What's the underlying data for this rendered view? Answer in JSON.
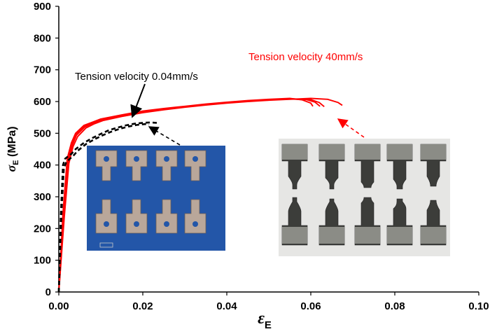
{
  "chart_data": {
    "type": "line",
    "title": "",
    "xlabel": "εE",
    "xlabel_symbol": "ε",
    "xlabel_sub": "E",
    "ylabel": "σE (MPa)",
    "ylabel_symbol": "σ",
    "ylabel_sub": "E",
    "ylabel_unit": " (MPa)",
    "xlim": [
      0,
      0.1
    ],
    "ylim": [
      0,
      900
    ],
    "x_ticks": [
      0,
      0.02,
      0.04,
      0.06,
      0.08,
      0.1
    ],
    "x_tick_labels": [
      "0.00",
      "0.02",
      "0.04",
      "0.06",
      "0.08",
      "0.10"
    ],
    "y_ticks": [
      0,
      100,
      200,
      300,
      400,
      500,
      600,
      700,
      800,
      900
    ],
    "y_tick_labels": [
      "0",
      "100",
      "200",
      "300",
      "400",
      "500",
      "600",
      "700",
      "800",
      "900"
    ],
    "grid": false,
    "series": [
      {
        "name": "Tension velocity 40mm/s",
        "color": "#ff0000",
        "style": "solid",
        "runs": [
          {
            "x": [
              0,
              0.001,
              0.002,
              0.003,
              0.004,
              0.006,
              0.008,
              0.01,
              0.015,
              0.02,
              0.025,
              0.03,
              0.035,
              0.04,
              0.045,
              0.05,
              0.055,
              0.058,
              0.06,
              0.0605
            ],
            "y": [
              0,
              250,
              420,
              470,
              500,
              525,
              535,
              545,
              558,
              570,
              578,
              585,
              592,
              598,
              603,
              607,
              610,
              605,
              595,
              585
            ]
          },
          {
            "x": [
              0,
              0.0012,
              0.0022,
              0.0032,
              0.0042,
              0.0062,
              0.0082,
              0.0102,
              0.015,
              0.02,
              0.025,
              0.03,
              0.035,
              0.04,
              0.045,
              0.05,
              0.055,
              0.059,
              0.061,
              0.0622
            ],
            "y": [
              0,
              240,
              410,
              462,
              494,
              520,
              532,
              542,
              555,
              567,
              575,
              583,
              590,
              596,
              601,
              605,
              608,
              606,
              598,
              585
            ]
          },
          {
            "x": [
              0,
              0.0011,
              0.0021,
              0.0031,
              0.0041,
              0.0061,
              0.0081,
              0.0101,
              0.015,
              0.02,
              0.025,
              0.03,
              0.035,
              0.04,
              0.045,
              0.05,
              0.055,
              0.06,
              0.062,
              0.0632
            ],
            "y": [
              0,
              245,
              415,
              466,
              498,
              523,
              534,
              544,
              557,
              569,
              577,
              584,
              591,
              597,
              602,
              606,
              609,
              606,
              597,
              584
            ]
          },
          {
            "x": [
              0,
              0.0013,
              0.0024,
              0.0034,
              0.0045,
              0.0065,
              0.0085,
              0.0105,
              0.015,
              0.02,
              0.025,
              0.03,
              0.035,
              0.04,
              0.045,
              0.05,
              0.055,
              0.06,
              0.064,
              0.0665,
              0.0675
            ],
            "y": [
              0,
              235,
              405,
              458,
              490,
              517,
              530,
              540,
              553,
              565,
              574,
              582,
              589,
              595,
              600,
              604,
              607,
              610,
              607,
              597,
              588
            ]
          }
        ]
      },
      {
        "name": "Tension velocity 0.04mm/s",
        "color": "#000000",
        "style": "dashed",
        "runs": [
          {
            "x": [
              0,
              0.0005,
              0.001,
              0.0015,
              0.002,
              0.003,
              0.004,
              0.006,
              0.008,
              0.01,
              0.012,
              0.014,
              0.016,
              0.018,
              0.02,
              0.022,
              0.024
            ],
            "y": [
              0,
              250,
              400,
              420,
              425,
              435,
              450,
              470,
              485,
              498,
              510,
              518,
              525,
              530,
              533,
              534,
              532
            ]
          },
          {
            "x": [
              0,
              0.0006,
              0.0012,
              0.0018,
              0.0025,
              0.0035,
              0.0045,
              0.0065,
              0.0085,
              0.0105,
              0.0125,
              0.0145,
              0.0165,
              0.0185,
              0.0205,
              0.0215
            ],
            "y": [
              0,
              240,
              390,
              410,
              418,
              430,
              445,
              466,
              481,
              494,
              505,
              514,
              521,
              526,
              529,
              527
            ]
          }
        ]
      }
    ],
    "annotations": [
      {
        "text": "Tension velocity 40mm/s",
        "color": "#ff0000"
      },
      {
        "text": "Tension velocity 0.04mm/s",
        "color": "#000000"
      }
    ],
    "inset_images": [
      {
        "name": "low-velocity-specimens-photo",
        "points_to_series": "Tension velocity 0.04mm/s"
      },
      {
        "name": "high-velocity-specimens-photo",
        "points_to_series": "Tension velocity 40mm/s"
      }
    ]
  }
}
